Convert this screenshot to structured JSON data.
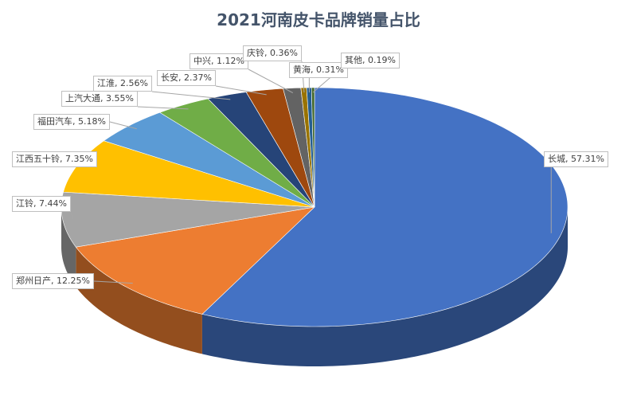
{
  "chart_data": {
    "type": "pie",
    "title": "2021河南皮卡品牌销量占比",
    "categories": [
      "长城",
      "郑州日产",
      "江铃",
      "江西五十铃",
      "福田汽车",
      "上汽大通",
      "江淮",
      "长安",
      "中兴",
      "庆铃",
      "黄海",
      "其他"
    ],
    "values": [
      57.31,
      12.25,
      7.44,
      7.35,
      5.18,
      3.55,
      2.56,
      2.37,
      1.12,
      0.36,
      0.31,
      0.19
    ],
    "value_labels": [
      "57.31%",
      "12.25%",
      "7.44%",
      "7.35%",
      "5.18%",
      "3.55%",
      "2.56%",
      "2.37%",
      "1.12%",
      "0.36%",
      "0.31%",
      "0.19%"
    ],
    "colors": [
      "#4472c4",
      "#ed7d31",
      "#a5a5a5",
      "#ffc000",
      "#5b9bd5",
      "#70ad47",
      "#264478",
      "#9e480e",
      "#636363",
      "#997300",
      "#255e91",
      "#43682b"
    ]
  }
}
